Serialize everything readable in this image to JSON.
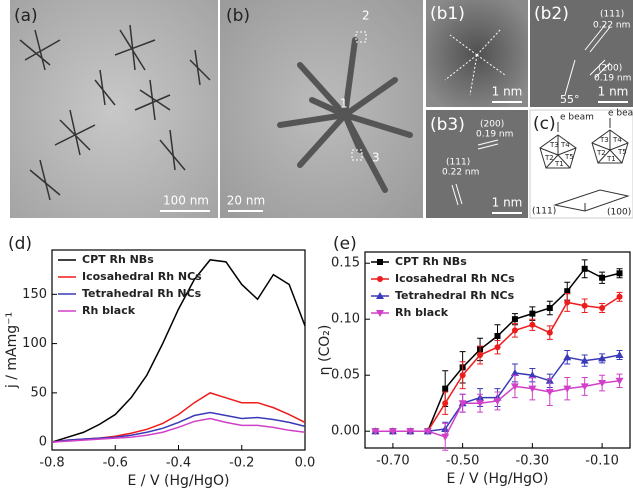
{
  "panels": [
    {
      "label": "(a)",
      "scale": "100 nm"
    },
    {
      "label": "(b)",
      "scale": "20 nm",
      "marks": [
        "1",
        "2",
        "3"
      ]
    },
    {
      "label": "(b1)",
      "scale": "1 nm"
    },
    {
      "label": "(b2)",
      "scale": "1 nm",
      "notes": [
        "(111)",
        "0.22 nm",
        "(200)",
        "0.19 nm",
        "55°"
      ]
    },
    {
      "label": "(b3)",
      "scale": "1 nm",
      "notes": [
        "(200)",
        "0.19 nm",
        "(111)",
        "0.22 nm"
      ]
    },
    {
      "label": "(c)",
      "notes": [
        "e beam",
        "e beam",
        "T3",
        "T4",
        "T2",
        "T1",
        "T5",
        "T3",
        "T4",
        "T2",
        "T1",
        "T5",
        "(111)",
        "(100)"
      ]
    }
  ],
  "chart_data": [
    {
      "type": "line",
      "label": "(d)",
      "xlabel": "E / V (Hg/HgO)",
      "ylabel": "j / mAmg⁻¹",
      "x": [
        -0.8,
        -0.75,
        -0.7,
        -0.65,
        -0.6,
        -0.55,
        -0.5,
        -0.45,
        -0.4,
        -0.35,
        -0.3,
        -0.25,
        -0.2,
        -0.15,
        -0.1,
        -0.05,
        0.0
      ],
      "series": [
        {
          "name": "CPT Rh NBs",
          "color": "#000000",
          "values": [
            0,
            5,
            10,
            18,
            28,
            45,
            68,
            100,
            135,
            165,
            185,
            183,
            160,
            145,
            170,
            160,
            118
          ]
        },
        {
          "name": "Icosahedral Rh NCs",
          "color": "#ee1c1c",
          "values": [
            0,
            2,
            3,
            4,
            6,
            9,
            13,
            19,
            28,
            40,
            50,
            45,
            40,
            40,
            35,
            28,
            20
          ]
        },
        {
          "name": "Tetrahedral Rh NCs",
          "color": "#3a3ab8",
          "values": [
            0,
            2,
            3,
            4,
            5,
            7,
            10,
            14,
            20,
            27,
            30,
            27,
            24,
            25,
            23,
            20,
            16
          ]
        },
        {
          "name": "Rh black",
          "color": "#d040c8",
          "values": [
            0,
            1,
            2,
            3,
            4,
            5,
            7,
            10,
            15,
            21,
            24,
            20,
            17,
            17,
            15,
            12,
            10
          ]
        }
      ],
      "xlim": [
        -0.8,
        0.0
      ],
      "xticks": [
        -0.8,
        -0.6,
        -0.4,
        -0.2,
        {
          "value": 0,
          "label": "0.0"
        }
      ],
      "ylim": [
        -8,
        195
      ],
      "yticks": [
        0,
        50,
        100,
        150
      ],
      "legend": "upper left"
    },
    {
      "type": "errorline",
      "label": "(e)",
      "xlabel": "E / V (Hg/HgO)",
      "ylabel": "η (CO₂)",
      "x": [
        -0.75,
        -0.7,
        -0.65,
        -0.6,
        -0.55,
        -0.5,
        -0.45,
        -0.4,
        -0.35,
        -0.3,
        -0.25,
        -0.2,
        -0.15,
        -0.1,
        -0.05
      ],
      "series": [
        {
          "name": "CPT Rh NBs",
          "color": "#000000",
          "marker": "square",
          "values": [
            0,
            0,
            0,
            0,
            0.038,
            0.057,
            0.073,
            0.085,
            0.1,
            0.105,
            0.11,
            0.125,
            0.145,
            0.137,
            0.141
          ],
          "errors": [
            0,
            0,
            0,
            0,
            0.016,
            0.014,
            0.01,
            0.01,
            0.005,
            0.006,
            0.006,
            0.008,
            0.008,
            0.005,
            0.004
          ]
        },
        {
          "name": "Icosahedral Rh NCs",
          "color": "#ee1c1c",
          "marker": "circle",
          "values": [
            0,
            0,
            0,
            0,
            0.025,
            0.05,
            0.068,
            0.075,
            0.09,
            0.095,
            0.088,
            0.115,
            0.112,
            0.11,
            0.12
          ],
          "errors": [
            0,
            0,
            0,
            0,
            0.01,
            0.012,
            0.008,
            0.006,
            0.006,
            0.005,
            0.006,
            0.008,
            0.006,
            0.004,
            0.004
          ]
        },
        {
          "name": "Tetrahedral Rh NCs",
          "color": "#3a3ab8",
          "marker": "triangle",
          "values": [
            0,
            0,
            0,
            0,
            0.002,
            0.025,
            0.03,
            0.03,
            0.052,
            0.05,
            0.045,
            0.066,
            0.063,
            0.065,
            0.068
          ],
          "errors": [
            0,
            0,
            0,
            0,
            0.006,
            0.008,
            0.008,
            0.008,
            0.008,
            0.006,
            0.006,
            0.006,
            0.005,
            0.004,
            0.004
          ]
        },
        {
          "name": "Rh black",
          "color": "#d040c8",
          "marker": "triangle-down",
          "values": [
            0,
            0,
            0,
            0,
            -0.005,
            0.025,
            0.025,
            0.027,
            0.04,
            0.038,
            0.035,
            0.038,
            0.04,
            0.043,
            0.045
          ],
          "errors": [
            0,
            0,
            0,
            0,
            0.012,
            0.008,
            0.008,
            0.008,
            0.01,
            0.01,
            0.012,
            0.01,
            0.008,
            0.007,
            0.006
          ]
        }
      ],
      "xlim": [
        -0.78,
        -0.02
      ],
      "xticks": [
        {
          "value": -0.7,
          "label": "-0.70"
        },
        {
          "value": -0.5,
          "label": "-0.50"
        },
        {
          "value": -0.3,
          "label": "-0.30"
        },
        {
          "value": -0.1,
          "label": "-0.10"
        }
      ],
      "ylim": [
        -0.015,
        0.16
      ],
      "yticks": [
        {
          "value": 0,
          "label": "0.00"
        },
        {
          "value": 0.05,
          "label": "0.05"
        },
        {
          "value": 0.1,
          "label": "0.10"
        },
        {
          "value": 0.15,
          "label": "0.15"
        }
      ],
      "legend": "upper left"
    }
  ]
}
